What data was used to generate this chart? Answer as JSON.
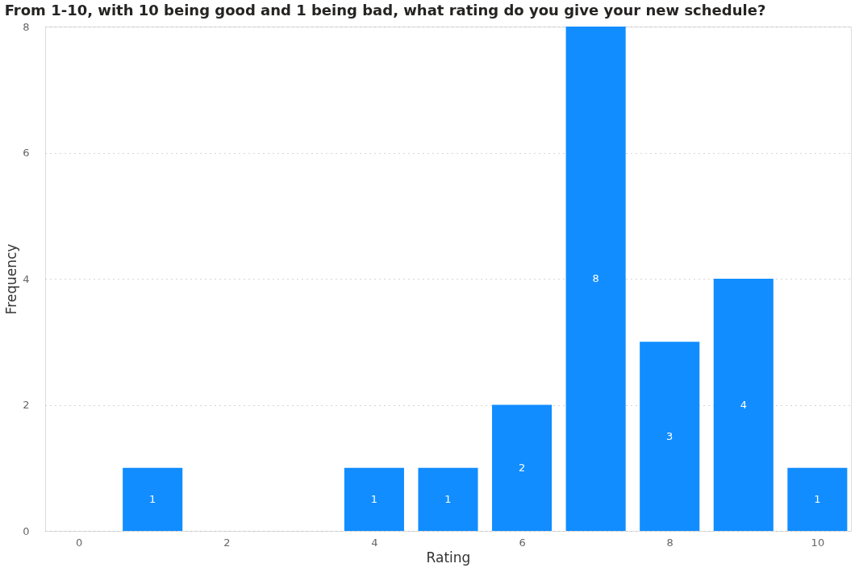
{
  "chart_data": {
    "type": "bar",
    "title": "From 1-10, with 10 being good and 1 being bad, what rating do you give your new schedule?",
    "xlabel": "Rating",
    "ylabel": "Frequency",
    "x": [
      1,
      4,
      5,
      6,
      7,
      8,
      9,
      10
    ],
    "values": [
      1,
      1,
      1,
      2,
      8,
      3,
      4,
      1
    ],
    "color": "#118dff",
    "xlim": [
      -0.4,
      10.4
    ],
    "xticks": [
      0,
      2,
      4,
      6,
      8,
      10
    ],
    "ylim": [
      0,
      8
    ],
    "yticks": [
      0,
      2,
      4,
      6,
      8
    ],
    "grid": "y",
    "data_labels": true
  }
}
